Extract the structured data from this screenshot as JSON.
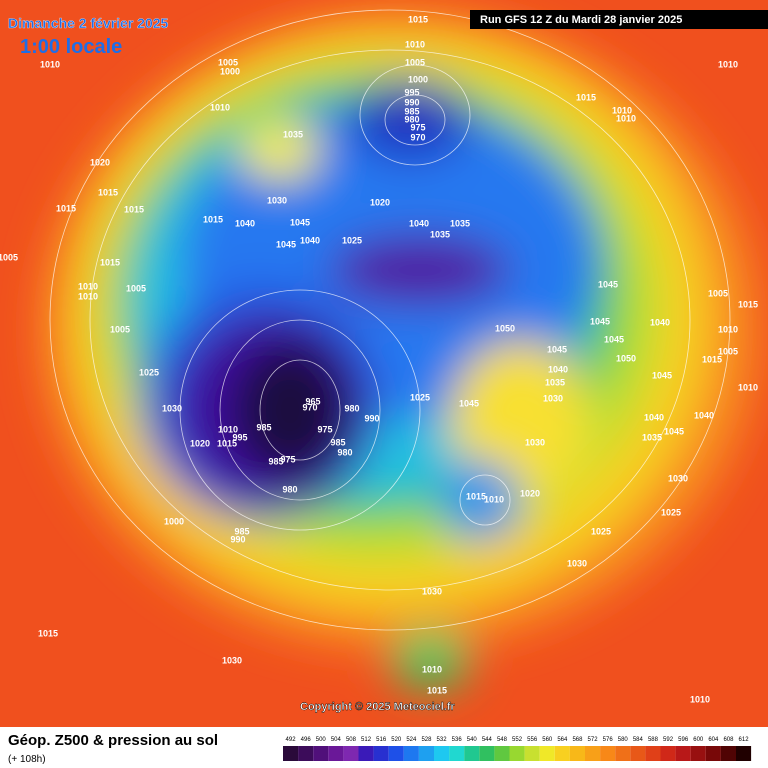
{
  "header": {
    "date": "Dimanche 2 février 2025",
    "time": "1:00 locale",
    "run": "Run GFS 12 Z du Mardi 28 janvier 2025"
  },
  "copyright": "Copyright © 2025 Meteociel.fr",
  "footer": {
    "title": "Géop. Z500 & pression au sol",
    "subtitle": "(+ 108h)"
  },
  "scale": [
    492,
    496,
    500,
    504,
    508,
    512,
    516,
    520,
    524,
    528,
    532,
    536,
    540,
    544,
    548,
    552,
    556,
    560,
    564,
    568,
    572,
    576,
    580,
    584,
    588,
    592,
    596,
    600,
    604,
    608,
    612
  ],
  "isobar_labels": [
    1015,
    1010,
    1010,
    1005,
    1000,
    1010,
    1005,
    1000,
    995,
    990,
    985,
    980,
    975,
    970,
    1010,
    1015,
    1010,
    1010,
    1035,
    1020,
    1015,
    1015,
    1015,
    1030,
    1020,
    1015,
    1040,
    1045,
    1040,
    1035,
    1035,
    1045,
    1040,
    1025,
    1005,
    1015,
    1010,
    1010,
    1005,
    1045,
    1005,
    1015,
    1045,
    1040,
    1050,
    1005,
    1010,
    1045,
    1045,
    1005,
    1050,
    1015,
    1025,
    1040,
    1045,
    1035,
    1010,
    1030,
    965,
    970,
    980,
    1025,
    1045,
    1030,
    990,
    1010,
    985,
    975,
    1020,
    1015,
    995,
    1040,
    1040,
    1045,
    1035,
    1030,
    985,
    980,
    985,
    975,
    980,
    1030,
    1015,
    1010,
    1020,
    1000,
    985,
    990,
    1025,
    1025,
    1030,
    1030,
    1015,
    1030,
    1010,
    1015,
    1010
  ]
}
